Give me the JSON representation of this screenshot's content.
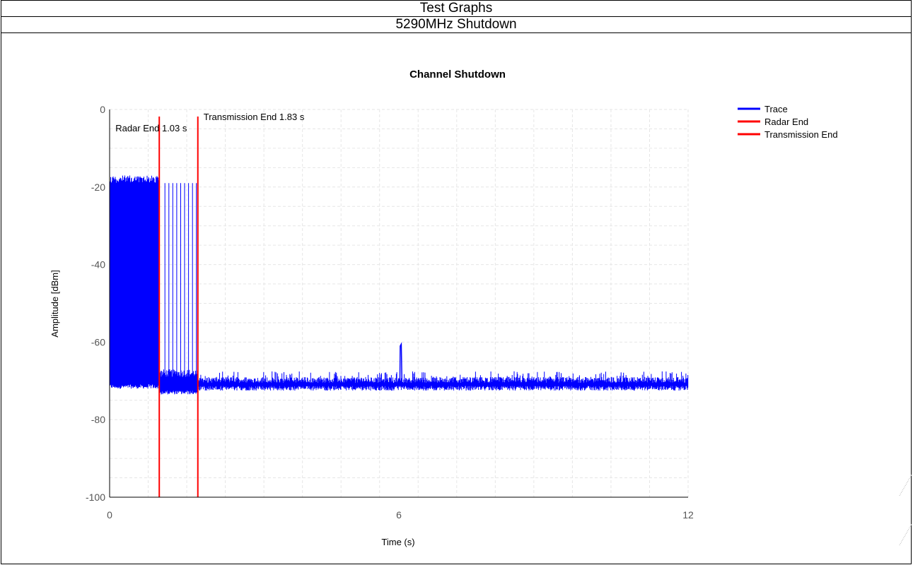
{
  "header": {
    "title": "Test Graphs",
    "subtitle": "5290MHz Shutdown"
  },
  "colors": {
    "trace": "#0000ff",
    "marker": "#ff0000",
    "axis": "#000000",
    "grid": "#e6e6e6",
    "tick_label": "#555555"
  },
  "chart_data": {
    "type": "line",
    "title": "Channel Shutdown",
    "xlabel": "Time (s)",
    "ylabel": "Amplitude [dBm]",
    "xlim": [
      0,
      12
    ],
    "ylim": [
      -100,
      0
    ],
    "x_ticks": [
      0,
      6,
      12
    ],
    "y_ticks": [
      0,
      -20,
      -40,
      -60,
      -80,
      -100
    ],
    "grid": true,
    "legend_position": "top-right",
    "series": [
      {
        "name": "Trace",
        "segments": [
          {
            "x_start": 0,
            "x_end": 1.03,
            "y_low": -72,
            "y_high": -17,
            "kind": "dense"
          },
          {
            "x_start": 1.03,
            "x_end": 1.83,
            "y_low": -71,
            "y_high": -19,
            "kind": "pulses"
          },
          {
            "x_start": 1.83,
            "x_end": 12,
            "y_low": -72.5,
            "y_high": -69,
            "kind": "noise"
          }
        ],
        "spikes": [
          {
            "x": 6.05,
            "y": -61
          }
        ]
      },
      {
        "name": "Radar End",
        "x": 1.03
      },
      {
        "name": "Transmission End",
        "x": 1.83
      }
    ],
    "annotations": [
      {
        "text": "Radar End 1.03 s",
        "x": 1.03
      },
      {
        "text": "Transmission End 1.83 s",
        "x": 1.83
      }
    ]
  }
}
